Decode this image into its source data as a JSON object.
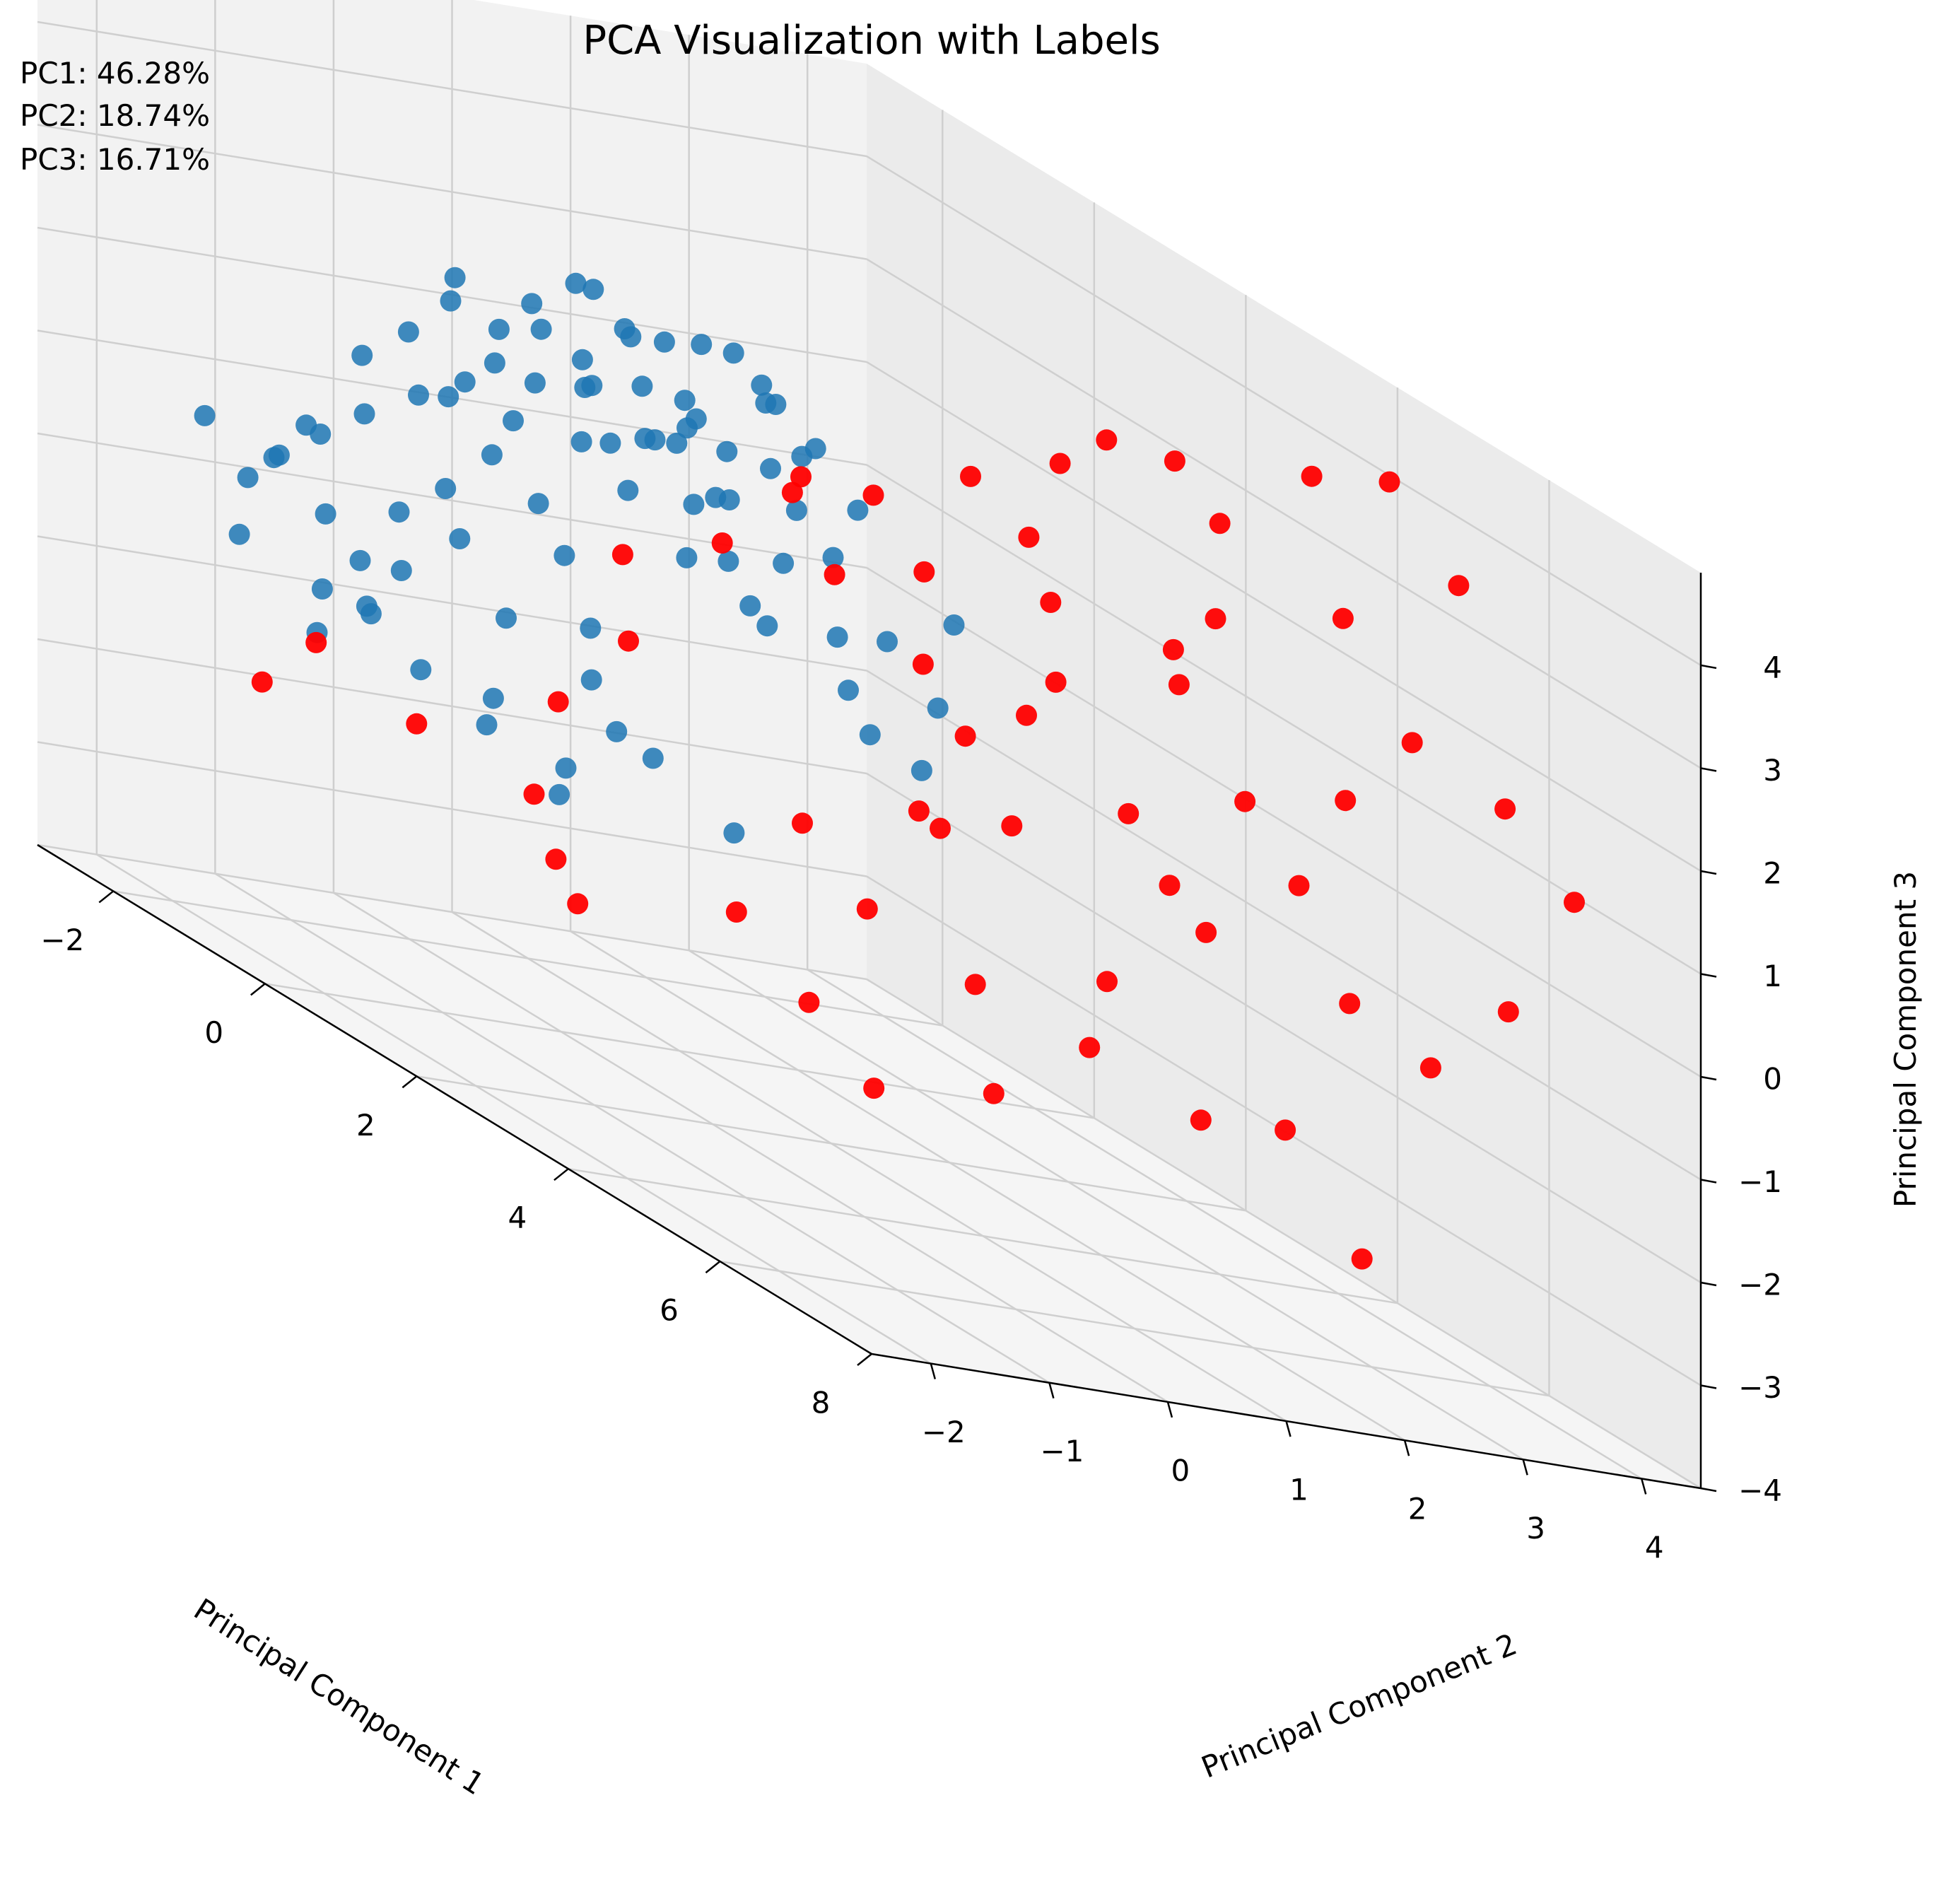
{
  "chart_data": {
    "type": "scatter",
    "projection": "3d",
    "title": "PCA Visualization with Labels",
    "annotations": [
      "PC1: 46.28%",
      "PC2: 18.74%",
      "PC3: 16.71%"
    ],
    "xlabel": "Principal Component 1",
    "ylabel": "Principal Component 2",
    "zlabel": "Principal Component 3",
    "x_ticks": [
      "−2",
      "0",
      "2",
      "4",
      "6",
      "8"
    ],
    "y_ticks": [
      "−2",
      "−1",
      "0",
      "1",
      "2",
      "3",
      "4"
    ],
    "z_ticks": [
      "−4",
      "−3",
      "−2",
      "−1",
      "0",
      "1",
      "2",
      "3",
      "4"
    ],
    "xlim": [
      -3,
      8
    ],
    "ylim": [
      -2.5,
      4.5
    ],
    "zlim": [
      -4,
      4.9
    ],
    "grid": true,
    "colors": {
      "class0": "#1f77b4",
      "class1": "#ff0000"
    },
    "series": [
      {
        "color": "#1f77b4",
        "points": [
          [
            -2.2,
            -1.6,
            0.7
          ],
          [
            -2.1,
            -1.3,
            0.2
          ],
          [
            -2.0,
            -1.1,
            0.5
          ],
          [
            -1.9,
            -1.5,
            -0.3
          ],
          [
            -1.8,
            -1.0,
            0.9
          ],
          [
            -1.7,
            -0.9,
            0.1
          ],
          [
            -1.6,
            -1.4,
            0.6
          ],
          [
            -1.5,
            -0.7,
            1.2
          ],
          [
            -1.4,
            -0.8,
            -0.2
          ],
          [
            -1.3,
            -1.2,
            1.0
          ],
          [
            -1.2,
            -0.6,
            0.4
          ],
          [
            -1.1,
            -0.5,
            1.6
          ],
          [
            -1.0,
            -1.0,
            -0.5
          ],
          [
            -0.9,
            -0.4,
            0.8
          ],
          [
            -0.8,
            -0.3,
            1.9
          ],
          [
            -0.7,
            -0.9,
            0.0
          ],
          [
            -0.6,
            -0.2,
            1.3
          ],
          [
            -0.5,
            0.1,
            2.1
          ],
          [
            -0.4,
            -0.6,
            0.5
          ],
          [
            -0.3,
            0.0,
            1.0
          ],
          [
            -0.2,
            0.3,
            1.7
          ],
          [
            -0.1,
            -0.4,
            -0.1
          ],
          [
            0.0,
            0.2,
            2.3
          ],
          [
            0.1,
            0.5,
            1.4
          ],
          [
            0.2,
            -0.1,
            0.7
          ],
          [
            0.3,
            0.6,
            2.0
          ],
          [
            0.4,
            0.0,
            -0.4
          ],
          [
            0.5,
            0.8,
            1.5
          ],
          [
            0.6,
            0.3,
            2.6
          ],
          [
            0.7,
            -0.2,
            0.2
          ],
          [
            0.8,
            0.9,
            1.1
          ],
          [
            0.9,
            0.4,
            2.2
          ],
          [
            1.0,
            1.1,
            0.6
          ],
          [
            1.1,
            0.6,
            1.8
          ],
          [
            1.2,
            -0.3,
            -0.6
          ],
          [
            1.3,
            1.2,
            2.4
          ],
          [
            1.4,
            0.7,
            0.9
          ],
          [
            1.5,
            0.1,
            1.3
          ],
          [
            1.6,
            1.4,
            0.3
          ],
          [
            1.7,
            0.9,
            2.0
          ],
          [
            -1.5,
            0.4,
            1.9
          ],
          [
            -1.2,
            0.6,
            2.4
          ],
          [
            -1.0,
            0.9,
            2.0
          ],
          [
            -0.8,
            1.1,
            2.6
          ],
          [
            -0.6,
            0.8,
            1.6
          ],
          [
            -0.4,
            1.3,
            2.2
          ],
          [
            -0.2,
            1.0,
            2.8
          ],
          [
            0.0,
            1.4,
            1.9
          ],
          [
            0.2,
            1.6,
            2.5
          ],
          [
            0.4,
            1.2,
            3.0
          ],
          [
            -1.8,
            0.2,
            1.4
          ],
          [
            -1.6,
            0.5,
            2.2
          ],
          [
            -1.4,
            0.0,
            2.7
          ],
          [
            -1.1,
            0.3,
            1.5
          ],
          [
            -0.9,
            0.7,
            3.0
          ],
          [
            -0.5,
            0.5,
            2.4
          ],
          [
            -0.3,
            0.9,
            1.8
          ],
          [
            -0.1,
            0.6,
            2.9
          ],
          [
            0.1,
            1.0,
            2.1
          ],
          [
            0.3,
            1.5,
            2.7
          ],
          [
            0.5,
            1.1,
            1.6
          ],
          [
            0.7,
            1.7,
            2.3
          ],
          [
            0.9,
            1.3,
            1.2
          ],
          [
            1.1,
            1.8,
            1.9
          ],
          [
            1.3,
            1.5,
            0.7
          ],
          [
            -2.0,
            -0.4,
            1.6
          ],
          [
            -1.7,
            -0.2,
            2.0
          ],
          [
            -1.3,
            -0.1,
            2.5
          ],
          [
            -0.7,
            0.2,
            2.8
          ],
          [
            -0.2,
            0.4,
            3.2
          ],
          [
            0.6,
            0.8,
            3.1
          ],
          [
            0.8,
            1.3,
            2.7
          ],
          [
            1.0,
            0.5,
            2.5
          ],
          [
            1.2,
            1.0,
            2.2
          ],
          [
            1.4,
            1.4,
            1.5
          ],
          [
            1.8,
            1.6,
            0.9
          ],
          [
            2.0,
            1.9,
            0.4
          ],
          [
            2.2,
            1.2,
            0.1
          ],
          [
            1.9,
            2.1,
            1.2
          ],
          [
            2.1,
            1.7,
            -0.2
          ],
          [
            -0.6,
            -0.8,
            -0.9
          ],
          [
            -0.2,
            -0.5,
            -1.2
          ],
          [
            0.2,
            -0.7,
            -0.8
          ],
          [
            0.6,
            -0.4,
            -1.5
          ],
          [
            1.0,
            -0.6,
            -1.1
          ],
          [
            -1.9,
            -0.8,
            -0.7
          ],
          [
            -1.5,
            -1.1,
            -1.0
          ],
          [
            -1.1,
            -0.9,
            -0.6
          ],
          [
            0.9,
            0.2,
            -0.9
          ],
          [
            1.5,
            0.5,
            -1.3
          ]
        ]
      },
      {
        "color": "#ff0000",
        "points": [
          [
            4.5,
            2.3,
            4.0
          ],
          [
            4.0,
            3.0,
            3.3
          ],
          [
            5.0,
            3.4,
            2.9
          ],
          [
            3.2,
            1.9,
            2.6
          ],
          [
            3.8,
            1.7,
            2.2
          ],
          [
            2.6,
            1.4,
            1.9
          ],
          [
            2.2,
            0.9,
            1.6
          ],
          [
            2.9,
            1.2,
            1.1
          ],
          [
            3.4,
            2.0,
            1.3
          ],
          [
            5.6,
            3.6,
            2.0
          ],
          [
            6.2,
            4.0,
            1.7
          ],
          [
            6.8,
            4.2,
            1.1
          ],
          [
            4.8,
            2.7,
            0.9
          ],
          [
            4.2,
            2.1,
            0.4
          ],
          [
            5.2,
            2.9,
            0.3
          ],
          [
            3.6,
            1.5,
            -0.1
          ],
          [
            3.0,
            1.1,
            -0.3
          ],
          [
            4.6,
            2.5,
            -0.5
          ],
          [
            5.4,
            3.2,
            -0.7
          ],
          [
            6.0,
            3.5,
            -1.0
          ],
          [
            2.4,
            0.5,
            -0.8
          ],
          [
            3.1,
            0.6,
            -1.3
          ],
          [
            3.9,
            1.0,
            -1.6
          ],
          [
            4.7,
            1.6,
            -1.1
          ],
          [
            5.8,
            2.4,
            -1.9
          ],
          [
            2.0,
            0.2,
            -1.9
          ],
          [
            2.8,
            0.3,
            -2.4
          ],
          [
            3.5,
            0.4,
            -2.9
          ],
          [
            4.3,
            0.9,
            -2.5
          ],
          [
            6.5,
            2.6,
            -2.8
          ],
          [
            1.2,
            -0.2,
            0.3
          ],
          [
            0.9,
            -0.6,
            -0.5
          ],
          [
            0.5,
            0.2,
            0.9
          ],
          [
            -0.5,
            -0.9,
            -1.4
          ],
          [
            -1.2,
            -1.3,
            -1.0
          ],
          [
            -0.2,
            -0.1,
            -1.8
          ],
          [
            0.4,
            -0.3,
            -2.2
          ],
          [
            1.0,
            -0.5,
            -2.4
          ],
          [
            -1.6,
            -1.5,
            -1.6
          ],
          [
            1.5,
            0.4,
            1.5
          ],
          [
            1.8,
            0.8,
            2.2
          ],
          [
            2.4,
            1.1,
            2.5
          ],
          [
            3.6,
            2.3,
            3.8
          ],
          [
            4.9,
            3.2,
            4.2
          ],
          [
            5.3,
            3.6,
            4.4
          ],
          [
            5.9,
            3.8,
            3.7
          ],
          [
            2.9,
            1.6,
            3.0
          ],
          [
            3.3,
            2.1,
            3.4
          ],
          [
            4.1,
            2.9,
            2.4
          ],
          [
            5.5,
            3.1,
            1.3
          ],
          [
            4.4,
            2.4,
            1.8
          ],
          [
            3.7,
            2.8,
            1.9
          ],
          [
            2.7,
            2.2,
            0.7
          ],
          [
            4.0,
            1.9,
            -2.0
          ],
          [
            5.0,
            2.2,
            -2.2
          ],
          [
            3.3,
            1.3,
            0.6
          ],
          [
            2.5,
            1.6,
            -0.6
          ],
          [
            6.4,
            3.9,
            -0.2
          ],
          [
            4.9,
            2.0,
            0.0
          ],
          [
            1.6,
            1.0,
            2.3
          ]
        ]
      }
    ]
  }
}
